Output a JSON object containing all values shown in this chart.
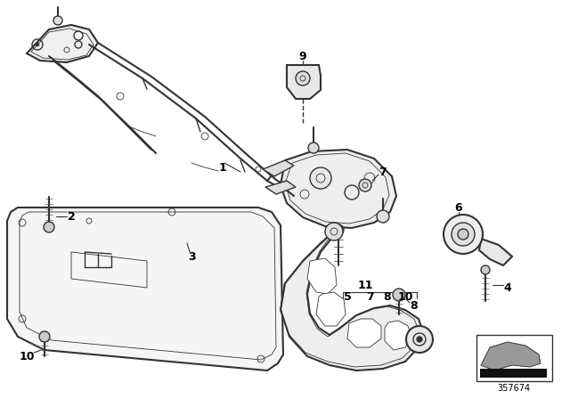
{
  "background_color": "#ffffff",
  "line_color": "#333333",
  "part_number": "357674",
  "fig_width": 6.4,
  "fig_height": 4.48,
  "dpi": 100
}
